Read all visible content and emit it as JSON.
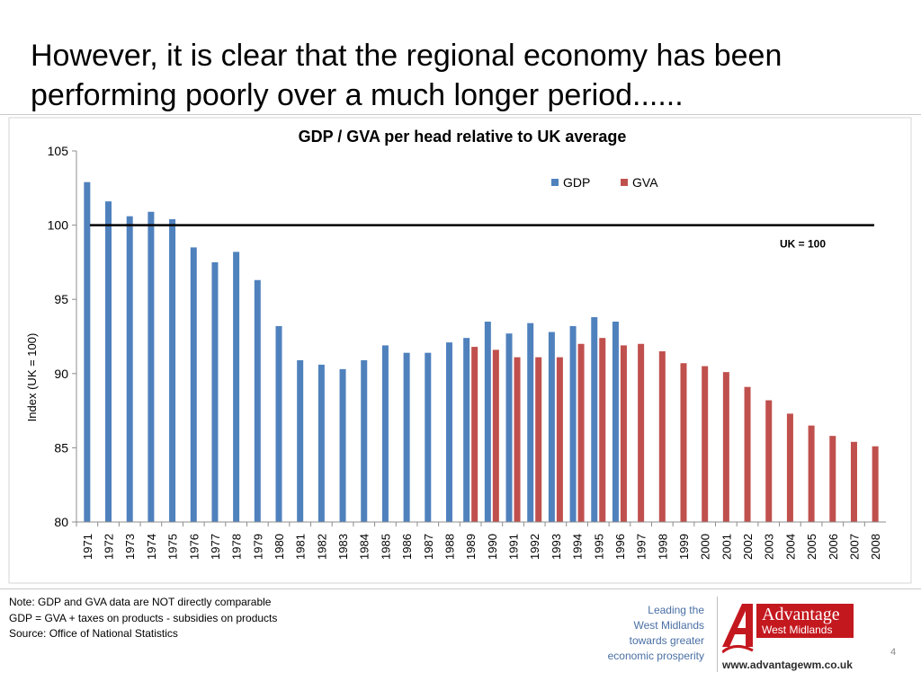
{
  "slide": {
    "title": "However, it is clear that the regional economy has been performing poorly over a much longer period......",
    "page_number": "4"
  },
  "notes": [
    "Note: GDP and GVA data are NOT directly comparable",
    "GDP =  GVA + taxes on products - subsidies on products",
    "Source: Office of National Statistics"
  ],
  "footer": {
    "tagline": [
      "Leading the",
      "West Midlands",
      "towards greater",
      "economic prosperity"
    ],
    "brand": {
      "line1": "Advantage",
      "line2": "West Midlands"
    },
    "website": "www.advantagewm.co.uk"
  },
  "colors": {
    "gdp": "#4f81bd",
    "gva": "#c0504d",
    "reference": "#000000",
    "accent": "#c4181f",
    "tagline": "#4a6fa5"
  },
  "chart_data": {
    "type": "bar",
    "title": "GDP / GVA per head relative to UK average",
    "xlabel": "",
    "ylabel": "Index (UK = 100)",
    "ylim": [
      80,
      105
    ],
    "yticks": [
      80,
      85,
      90,
      95,
      100,
      105
    ],
    "grid": false,
    "legend": "top-right",
    "categories": [
      "1971",
      "1972",
      "1973",
      "1974",
      "1975",
      "1976",
      "1977",
      "1978",
      "1979",
      "1980",
      "1981",
      "1982",
      "1983",
      "1984",
      "1985",
      "1986",
      "1987",
      "1988",
      "1989",
      "1990",
      "1991",
      "1992",
      "1993",
      "1994",
      "1995",
      "1996",
      "1997",
      "1998",
      "1999",
      "2000",
      "2001",
      "2002",
      "2003",
      "2004",
      "2005",
      "2006",
      "2007",
      "2008"
    ],
    "series": [
      {
        "name": "GDP",
        "color": "#4f81bd",
        "values": [
          102.9,
          101.6,
          100.6,
          100.9,
          100.4,
          98.5,
          97.5,
          98.2,
          96.3,
          93.2,
          90.9,
          90.6,
          90.3,
          90.9,
          91.9,
          91.4,
          91.4,
          92.1,
          92.4,
          93.5,
          92.7,
          93.4,
          92.8,
          93.2,
          93.8,
          93.5,
          null,
          null,
          null,
          null,
          null,
          null,
          null,
          null,
          null,
          null,
          null,
          null
        ]
      },
      {
        "name": "GVA",
        "color": "#c0504d",
        "values": [
          null,
          null,
          null,
          null,
          null,
          null,
          null,
          null,
          null,
          null,
          null,
          null,
          null,
          null,
          null,
          null,
          null,
          null,
          91.8,
          91.6,
          91.1,
          91.1,
          91.1,
          92.0,
          92.4,
          91.9,
          92.0,
          91.5,
          90.7,
          90.5,
          90.1,
          89.1,
          88.2,
          87.3,
          86.5,
          85.8,
          85.4,
          85.1
        ]
      }
    ],
    "reference_line": {
      "value": 100,
      "label": "UK = 100"
    }
  }
}
